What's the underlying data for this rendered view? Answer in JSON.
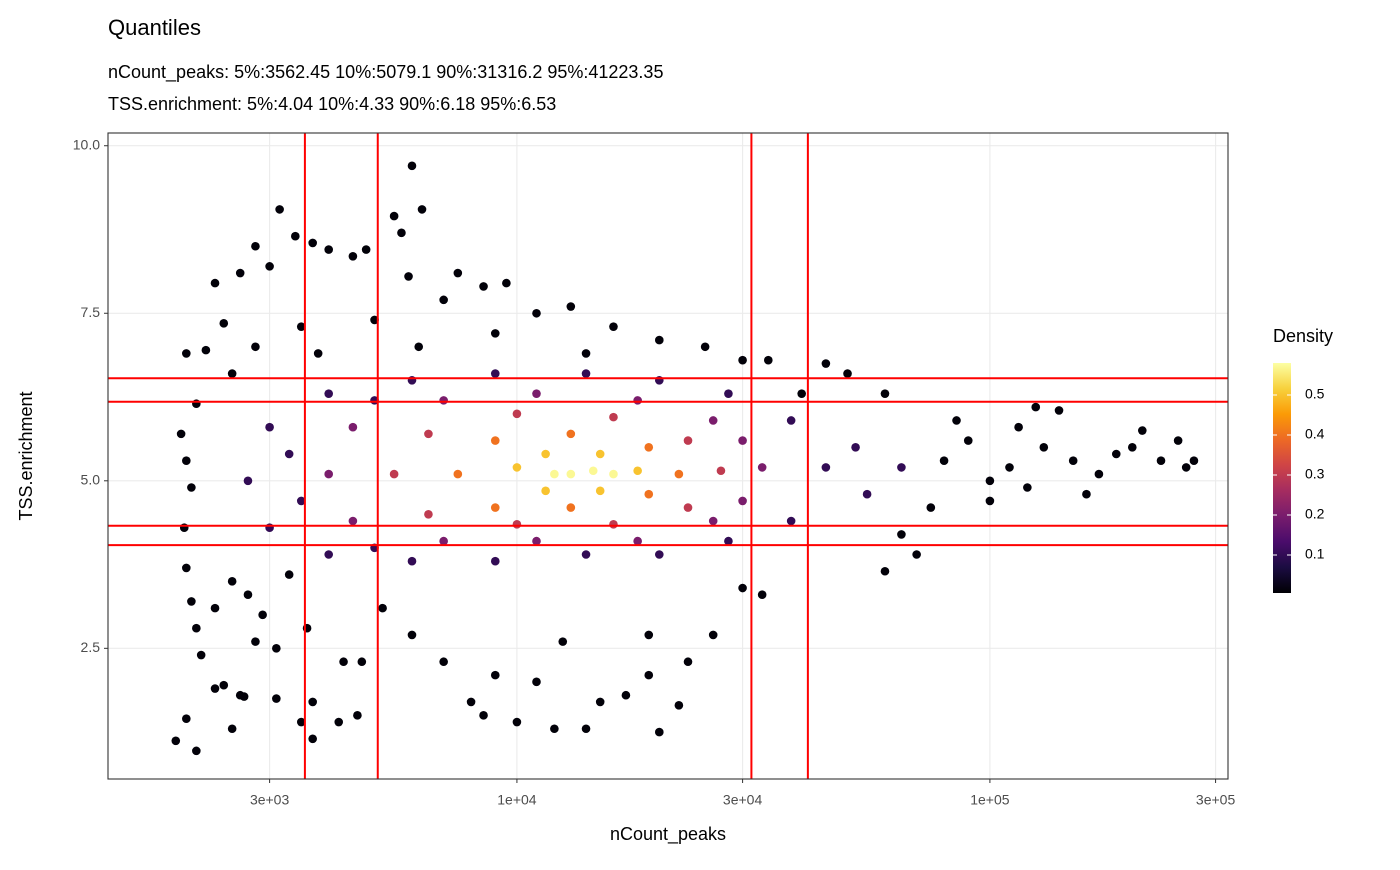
{
  "chart_data": {
    "type": "scatter",
    "title": "Quantiles",
    "subtitle": [
      "nCount_peaks: 5%:3562.45 10%:5079.1 90%:31316.2 95%:41223.35",
      "TSS.enrichment: 5%:4.04 10%:4.33 90%:6.18 95%:6.53"
    ],
    "x_label": "nCount_peaks",
    "y_label": "TSS.enrichment",
    "x_log": true,
    "grid": true,
    "xlim": [
      1366,
      318700
    ],
    "ylim": [
      0.55,
      10.19
    ],
    "xticks": [
      {
        "value": 3000,
        "label": "3e+03"
      },
      {
        "value": 10000,
        "label": "1e+04"
      },
      {
        "value": 30000,
        "label": "3e+04"
      },
      {
        "value": 100000,
        "label": "1e+05"
      },
      {
        "value": 300000,
        "label": "3e+05"
      }
    ],
    "yticks": [
      {
        "value": 2.5,
        "label": "2.5"
      },
      {
        "value": 5,
        "label": "5.0"
      },
      {
        "value": 7.5,
        "label": "7.5"
      },
      {
        "value": 10,
        "label": "10.0"
      }
    ],
    "vlines": [
      3562.45,
      5079.1,
      31316.2,
      41223.35
    ],
    "hlines": [
      4.04,
      4.33,
      6.18,
      6.53
    ],
    "line_color": "#ff0000",
    "color_scale": [
      "#000004",
      "#1b0c41",
      "#4a0c6b",
      "#781c6d",
      "#a52c60",
      "#cf4446",
      "#ed6925",
      "#fb9b06",
      "#f7d13d",
      "#fcffa4"
    ],
    "legend": {
      "title": "Density",
      "lim": [
        0.005,
        0.58
      ],
      "ticks": [
        0.1,
        0.2,
        0.3,
        0.4,
        0.5
      ]
    },
    "x": [
      1900,
      2000,
      2100,
      2150,
      2300,
      2400,
      2500,
      2600,
      2650,
      2800,
      3100,
      3100,
      3500,
      3700,
      3700,
      4200,
      4600,
      2300,
      2600,
      2800,
      3000,
      3150,
      3400,
      3700,
      4000,
      4500,
      4800,
      5500,
      5700,
      6000,
      6300,
      5900,
      7500,
      8500,
      9500,
      2400,
      2200,
      2000,
      2100,
      1950,
      2000,
      2050,
      1980,
      2000,
      2050,
      2100,
      2300,
      2500,
      2700,
      2900,
      3300,
      3600,
      4300,
      4700,
      5200,
      6000,
      7000,
      8000,
      8500,
      9000,
      10000,
      11000,
      12000,
      12500,
      14000,
      15000,
      17000,
      19000,
      20000,
      22000,
      23000,
      26000,
      19000,
      30000,
      33000,
      60000,
      70000,
      65000,
      75000,
      100000,
      110000,
      120000,
      130000,
      150000,
      160000,
      200000,
      210000,
      230000,
      250000,
      260000,
      270000,
      140000,
      125000,
      90000,
      80000,
      85000,
      100000,
      170000,
      185000,
      115000,
      50000,
      45000,
      60000,
      40000,
      34000,
      30000,
      25000,
      20000,
      16000,
      13000,
      11000,
      7000,
      5000,
      3500,
      2800,
      2500,
      3800,
      6200,
      9000,
      14000,
      2700,
      3000,
      3000,
      4000,
      4000,
      6000,
      6000,
      9000,
      9000,
      14000,
      14000,
      20000,
      20000,
      28000,
      28000,
      38000,
      38000,
      45000,
      52000,
      55000,
      65000,
      3300,
      3500,
      5000,
      5000,
      4000,
      4500,
      4500,
      7000,
      7000,
      11000,
      11000,
      18000,
      18000,
      26000,
      26000,
      33000,
      30000,
      30000,
      5500,
      6500,
      6500,
      10000,
      10000,
      16000,
      16000,
      23000,
      23000,
      27000,
      7500,
      9000,
      9000,
      13000,
      13000,
      19000,
      19000,
      22000,
      10000,
      11500,
      11500,
      15000,
      15000,
      18000,
      12000,
      13000,
      14500,
      16000
    ],
    "y": [
      1.12,
      1.45,
      0.97,
      2.4,
      1.9,
      1.95,
      1.3,
      1.8,
      1.78,
      2.6,
      2.5,
      1.75,
      1.4,
      1.15,
      1.7,
      1.4,
      1.5,
      7.95,
      8.1,
      8.5,
      8.2,
      9.05,
      8.65,
      8.55,
      8.45,
      8.35,
      8.45,
      8.95,
      8.7,
      9.7,
      9.05,
      8.05,
      8.1,
      7.9,
      7.95,
      7.35,
      6.95,
      6.9,
      6.15,
      5.7,
      5.3,
      4.9,
      4.3,
      3.7,
      3.2,
      2.8,
      3.1,
      3.5,
      3.3,
      3.0,
      3.6,
      2.8,
      2.3,
      2.3,
      3.1,
      2.7,
      2.3,
      1.7,
      1.5,
      2.1,
      1.4,
      2.0,
      1.3,
      2.6,
      1.3,
      1.7,
      1.8,
      2.1,
      1.25,
      1.65,
      2.3,
      2.7,
      2.7,
      3.4,
      3.3,
      3.65,
      3.9,
      4.2,
      4.6,
      5.0,
      5.2,
      4.9,
      5.5,
      5.3,
      4.8,
      5.5,
      5.75,
      5.3,
      5.6,
      5.2,
      5.3,
      6.05,
      6.1,
      5.6,
      5.3,
      5.9,
      4.7,
      5.1,
      5.4,
      5.8,
      6.6,
      6.75,
      6.3,
      6.3,
      6.8,
      6.8,
      7.0,
      7.1,
      7.3,
      7.6,
      7.5,
      7.7,
      7.4,
      7.3,
      7.0,
      6.6,
      6.9,
      7.0,
      7.2,
      6.9,
      5.0,
      5.8,
      4.3,
      6.3,
      3.9,
      6.5,
      3.8,
      6.6,
      3.8,
      6.6,
      3.9,
      6.5,
      3.9,
      6.3,
      4.1,
      5.9,
      4.4,
      5.2,
      5.5,
      4.8,
      5.2,
      5.4,
      4.7,
      6.2,
      4.0,
      5.1,
      5.8,
      4.4,
      6.2,
      4.1,
      6.3,
      4.1,
      6.2,
      4.1,
      5.9,
      4.4,
      5.2,
      5.6,
      4.7,
      5.1,
      5.7,
      4.5,
      6.0,
      4.35,
      5.95,
      4.35,
      5.6,
      4.6,
      5.15,
      5.1,
      5.6,
      4.6,
      5.7,
      4.6,
      5.5,
      4.8,
      5.1,
      5.2,
      5.4,
      4.85,
      5.4,
      4.85,
      5.15,
      5.1,
      5.1,
      5.15,
      5.1
    ],
    "density": [
      0.01,
      0.01,
      0.01,
      0.01,
      0.01,
      0.01,
      0.01,
      0.01,
      0.01,
      0.01,
      0.01,
      0.01,
      0.01,
      0.01,
      0.01,
      0.01,
      0.01,
      0.01,
      0.01,
      0.01,
      0.01,
      0.01,
      0.01,
      0.01,
      0.01,
      0.01,
      0.01,
      0.01,
      0.01,
      0.01,
      0.01,
      0.01,
      0.01,
      0.01,
      0.01,
      0.01,
      0.01,
      0.01,
      0.01,
      0.01,
      0.01,
      0.01,
      0.01,
      0.01,
      0.01,
      0.01,
      0.01,
      0.01,
      0.01,
      0.01,
      0.01,
      0.01,
      0.01,
      0.01,
      0.01,
      0.01,
      0.01,
      0.01,
      0.01,
      0.01,
      0.01,
      0.01,
      0.01,
      0.01,
      0.01,
      0.01,
      0.01,
      0.01,
      0.01,
      0.01,
      0.01,
      0.01,
      0.01,
      0.01,
      0.01,
      0.01,
      0.01,
      0.01,
      0.01,
      0.01,
      0.01,
      0.01,
      0.01,
      0.01,
      0.01,
      0.01,
      0.01,
      0.01,
      0.01,
      0.01,
      0.01,
      0.01,
      0.01,
      0.01,
      0.01,
      0.01,
      0.01,
      0.01,
      0.01,
      0.01,
      0.01,
      0.01,
      0.01,
      0.01,
      0.01,
      0.01,
      0.01,
      0.01,
      0.01,
      0.01,
      0.01,
      0.01,
      0.01,
      0.01,
      0.01,
      0.01,
      0.01,
      0.01,
      0.01,
      0.01,
      0.1,
      0.1,
      0.1,
      0.1,
      0.1,
      0.1,
      0.1,
      0.1,
      0.1,
      0.1,
      0.1,
      0.1,
      0.1,
      0.1,
      0.1,
      0.1,
      0.1,
      0.1,
      0.1,
      0.1,
      0.1,
      0.1,
      0.1,
      0.1,
      0.1,
      0.2,
      0.2,
      0.2,
      0.2,
      0.2,
      0.2,
      0.2,
      0.2,
      0.2,
      0.2,
      0.2,
      0.2,
      0.2,
      0.2,
      0.3,
      0.3,
      0.3,
      0.3,
      0.3,
      0.3,
      0.3,
      0.3,
      0.3,
      0.3,
      0.4,
      0.4,
      0.4,
      0.4,
      0.4,
      0.4,
      0.4,
      0.4,
      0.5,
      0.5,
      0.5,
      0.5,
      0.5,
      0.5,
      0.57,
      0.57,
      0.57,
      0.57
    ]
  }
}
